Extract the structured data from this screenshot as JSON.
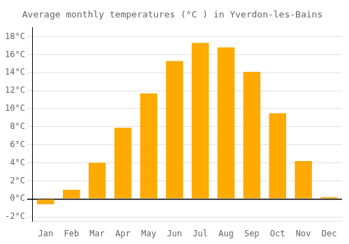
{
  "chart_data": {
    "type": "bar",
    "title": "Average monthly temperatures (°C ) in Yverdon-les-Bains",
    "categories": [
      "Jan",
      "Feb",
      "Mar",
      "Apr",
      "May",
      "Jun",
      "Jul",
      "Aug",
      "Sep",
      "Oct",
      "Nov",
      "Dec"
    ],
    "values": [
      -0.6,
      1.0,
      4.0,
      7.9,
      11.7,
      15.3,
      17.3,
      16.8,
      14.1,
      9.5,
      4.2,
      0.2
    ],
    "color": "#FFAA00",
    "ylim": [
      -2.5,
      19.0
    ],
    "yticks": [
      {
        "value": -2,
        "label": "-2°C"
      },
      {
        "value": 0,
        "label": "0°C"
      },
      {
        "value": 2,
        "label": "2°C"
      },
      {
        "value": 4,
        "label": "4°C"
      },
      {
        "value": 6,
        "label": "6°C"
      },
      {
        "value": 8,
        "label": "8°C"
      },
      {
        "value": 10,
        "label": "10°C"
      },
      {
        "value": 12,
        "label": "12°C"
      },
      {
        "value": 14,
        "label": "14°C"
      },
      {
        "value": 16,
        "label": "16°C"
      },
      {
        "value": 18,
        "label": "18°C"
      }
    ],
    "grid": true
  }
}
